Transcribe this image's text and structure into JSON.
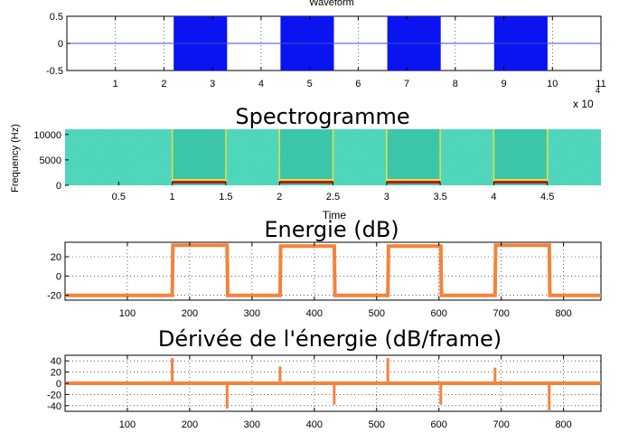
{
  "colors": {
    "wave_fill": "#0a14f0",
    "wave_zero_line": "#3a4fd0",
    "energy_line": "#f5823c",
    "spectro_bg": "#3fcfb0",
    "spectro_edge": "#e8e040",
    "spectro_band": "#c01818"
  },
  "chart_data": [
    {
      "type": "area",
      "title": "Waveform",
      "xlim": [
        0,
        110000
      ],
      "ylim": [
        -0.5,
        0.5
      ],
      "x_ticks": [
        10000,
        20000,
        30000,
        40000,
        50000,
        60000,
        70000,
        80000,
        90000,
        100000,
        110000
      ],
      "x_tick_labels": [
        "1",
        "2",
        "3",
        "4",
        "5",
        "6",
        "7",
        "8",
        "9",
        "10",
        "11"
      ],
      "x_exponent_label": "x 10",
      "x_exponent_power": "4",
      "y_ticks": [
        0.5,
        0,
        -0.5
      ],
      "y_tick_labels": [
        "0.5",
        "0",
        "-0.5"
      ],
      "grid": true,
      "segments": [
        {
          "start": 22000,
          "end": 33000
        },
        {
          "start": 44000,
          "end": 55000
        },
        {
          "start": 66000,
          "end": 77000
        },
        {
          "start": 88000,
          "end": 99000
        }
      ]
    },
    {
      "type": "heatmap",
      "title": "Spectrogramme",
      "xlabel": "Time",
      "ylabel": "Frequency (Hz)",
      "xlim": [
        0,
        5
      ],
      "ylim": [
        0,
        11025
      ],
      "x_ticks": [
        0.5,
        1,
        1.5,
        2,
        2.5,
        3,
        3.5,
        4,
        4.5
      ],
      "x_tick_labels": [
        "0.5",
        "1",
        "1.5",
        "2",
        "2.5",
        "3",
        "3.5",
        "4",
        "4.5"
      ],
      "y_ticks": [
        0,
        5000,
        10000
      ],
      "y_tick_labels": [
        "0",
        "5000",
        "10000"
      ],
      "segments": [
        {
          "start": 1,
          "end": 1.5
        },
        {
          "start": 2,
          "end": 2.5
        },
        {
          "start": 3,
          "end": 3.5
        },
        {
          "start": 4,
          "end": 4.5
        }
      ]
    },
    {
      "type": "line",
      "title": "Energie (dB)",
      "xlim": [
        0,
        860
      ],
      "ylim": [
        -25,
        35
      ],
      "x_ticks": [
        100,
        200,
        300,
        400,
        500,
        600,
        700,
        800
      ],
      "x_tick_labels": [
        "100",
        "200",
        "300",
        "400",
        "500",
        "600",
        "700",
        "800"
      ],
      "y_ticks": [
        20,
        0,
        -20
      ],
      "y_tick_labels": [
        "20",
        "0",
        "-20"
      ],
      "grid": true,
      "x": [
        0,
        172,
        173,
        260,
        261,
        345,
        346,
        432,
        433,
        518,
        519,
        603,
        604,
        690,
        691,
        777,
        778,
        860
      ],
      "y": [
        -20,
        -20,
        32,
        32,
        -20,
        -20,
        31,
        31,
        -20,
        -20,
        31,
        31,
        -20,
        -20,
        32,
        32,
        -20,
        -20
      ]
    },
    {
      "type": "line",
      "title": "Dérivée de l'énergie (dB/frame)",
      "xlim": [
        0,
        860
      ],
      "ylim": [
        -50,
        50
      ],
      "x_ticks": [
        100,
        200,
        300,
        400,
        500,
        600,
        700,
        800
      ],
      "x_tick_labels": [
        "100",
        "200",
        "300",
        "400",
        "500",
        "600",
        "700",
        "800"
      ],
      "y_ticks": [
        40,
        20,
        0,
        -20,
        -40
      ],
      "y_tick_labels": [
        "40",
        "20",
        "0",
        "-20",
        "-40"
      ],
      "grid": true,
      "baseline": 0,
      "spikes": [
        {
          "x": 172,
          "y": 45
        },
        {
          "x": 260,
          "y": -45
        },
        {
          "x": 345,
          "y": 30
        },
        {
          "x": 432,
          "y": -38
        },
        {
          "x": 518,
          "y": 45
        },
        {
          "x": 603,
          "y": -38
        },
        {
          "x": 690,
          "y": 28
        },
        {
          "x": 777,
          "y": -48
        }
      ]
    }
  ]
}
